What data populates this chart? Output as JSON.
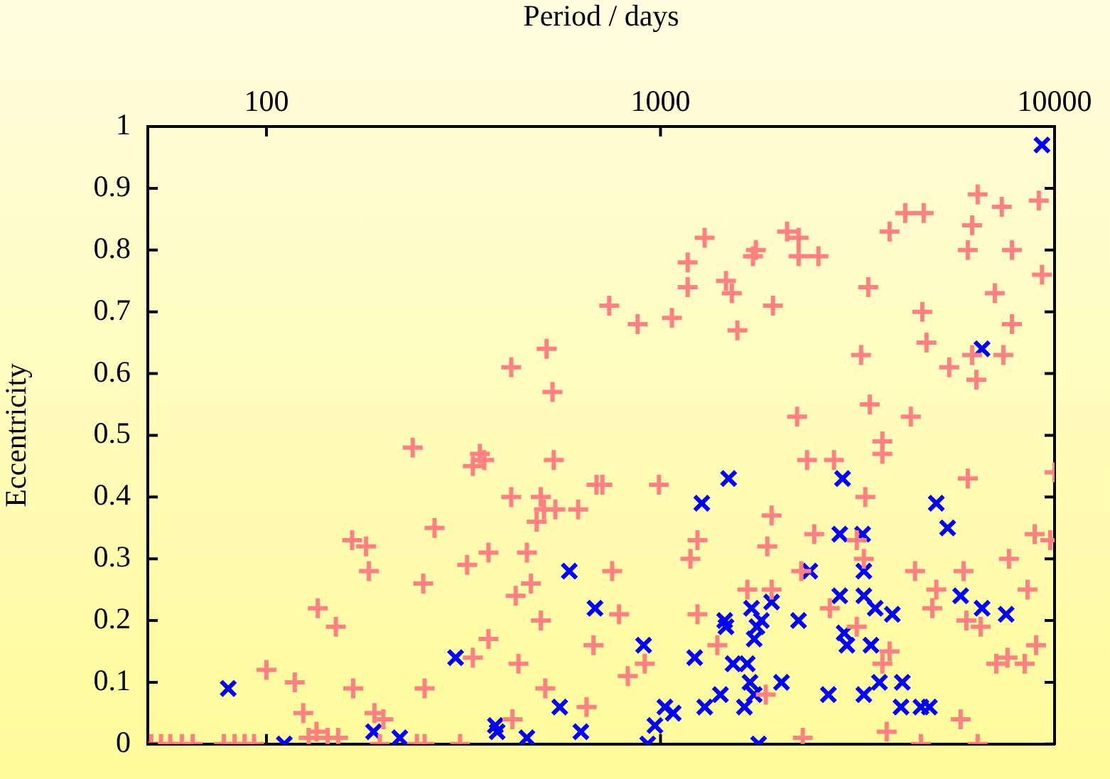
{
  "chart_data": {
    "type": "scatter",
    "xlabel": "Period / days",
    "ylabel": "Eccentricity",
    "log": "x",
    "xlim": [
      50,
      10000
    ],
    "xticks": [
      100,
      1000,
      10000
    ],
    "ylim": [
      0,
      1
    ],
    "yticks": [
      0,
      0.1,
      0.2,
      0.3,
      0.4,
      0.5,
      0.6,
      0.7,
      0.8,
      0.9,
      1
    ],
    "legend": false,
    "series": [
      {
        "color": "#ff8080",
        "marker": "cross",
        "x": [
          51,
          54,
          57,
          61,
          65,
          78,
          83,
          88,
          93,
          235,
          348,
          357,
          334,
          536,
          418,
          497,
          506,
          541,
          618,
          485,
          267,
          165,
          179,
          182,
          250,
          323,
          366,
          458,
          469,
          429,
          497,
          135,
          150,
          100,
          118,
          124,
          166,
          252,
          334,
          366,
          436,
          510,
          649,
          676,
          688,
          188,
          198,
          421,
          134,
          128,
          143,
          152,
          194,
          241,
          252,
          310,
          514,
          418,
          532,
          741,
          875,
          1069,
          1172,
          1172,
          1294,
          1466,
          1517,
          1567,
          1716,
          1746,
          1929,
          2095,
          2241,
          2241,
          2516,
          2221,
          3228,
          3367,
          3396,
          3656,
          3813,
          4178,
          4654,
          4317,
          4617,
          4731,
          5404,
          6176,
          6380,
          6022,
          6176,
          6331,
          7053,
          7346,
          7794,
          7794,
          7413,
          9120,
          9290,
          3656,
          2354,
          2755,
          712,
          991,
          1914,
          3309,
          2455,
          1241,
          1191,
          1866,
          3148,
          3281,
          2276,
          754,
          1661,
          1914,
          2690,
          3148,
          785,
          1241,
          912,
          826,
          1394,
          3813,
          3656,
          1850,
          3750,
          2296,
          4580,
          4426,
          6022,
          5875,
          5010,
          4894,
          5973,
          6490,
          7660,
          8538,
          8904,
          9750,
          10000,
          8977,
          7597,
          7112,
          8397,
          5776,
          6380
        ],
        "values": [
          0,
          0,
          0,
          0,
          0,
          0,
          0,
          0,
          0,
          0.48,
          0.47,
          0.46,
          0.45,
          0.46,
          0.4,
          0.4,
          0.38,
          0.38,
          0.38,
          0.36,
          0.35,
          0.33,
          0.32,
          0.28,
          0.26,
          0.29,
          0.31,
          0.31,
          0.26,
          0.24,
          0.2,
          0.22,
          0.19,
          0.12,
          0.1,
          0.05,
          0.09,
          0.09,
          0.14,
          0.17,
          0.13,
          0.09,
          0.06,
          0.16,
          0.42,
          0.05,
          0.04,
          0.04,
          0.02,
          0.01,
          0.01,
          0.01,
          0,
          0,
          0,
          0,
          0.64,
          0.61,
          0.57,
          0.71,
          0.68,
          0.69,
          0.78,
          0.74,
          0.82,
          0.75,
          0.73,
          0.67,
          0.79,
          0.8,
          0.71,
          0.83,
          0.82,
          0.79,
          0.79,
          0.53,
          0.63,
          0.74,
          0.55,
          0.49,
          0.83,
          0.86,
          0.86,
          0.53,
          0.7,
          0.65,
          0.61,
          0.84,
          0.89,
          0.8,
          0.63,
          0.59,
          0.73,
          0.87,
          0.8,
          0.68,
          0.63,
          0.88,
          0.76,
          0.47,
          0.46,
          0.46,
          0.42,
          0.42,
          0.37,
          0.4,
          0.34,
          0.33,
          0.3,
          0.32,
          0.33,
          0.3,
          0.28,
          0.28,
          0.25,
          0.25,
          0.22,
          0.19,
          0.21,
          0.21,
          0.13,
          0.11,
          0.16,
          0.15,
          0.13,
          0.08,
          0.02,
          0.01,
          0,
          0.28,
          0.43,
          0.28,
          0.25,
          0.22,
          0.2,
          0.19,
          0.3,
          0.25,
          0.34,
          0.33,
          0.44,
          0.16,
          0.14,
          0.13,
          0.13,
          0.04,
          0
        ]
      },
      {
        "color": "#0000ff",
        "marker": "x",
        "x": [
          80,
          111,
          187,
          218,
          302,
          381,
          385,
          458,
          555,
          587,
          628,
          682,
          1489,
          1273,
          906,
          928,
          968,
          1026,
          1077,
          1221,
          1295,
          1419,
          1455,
          1466,
          1528,
          1633,
          1660,
          1687,
          1702,
          1729,
          1757,
          1729,
          1774,
          1803,
          1914,
          2028,
          2240,
          2393,
          2667,
          2850,
          2897,
          2850,
          2924,
          2972,
          3258,
          3281,
          3281,
          3281,
          3420,
          3506,
          3594,
          3875,
          4108,
          4077,
          4580,
          4813,
          5010,
          5353,
          5776,
          6546,
          7536,
          6546,
          9290
        ],
        "values": [
          0.09,
          0,
          0.02,
          0.01,
          0.14,
          0.03,
          0.02,
          0.01,
          0.06,
          0.28,
          0.02,
          0.22,
          0.43,
          0.39,
          0.16,
          0,
          0.03,
          0.06,
          0.05,
          0.14,
          0.06,
          0.08,
          0.2,
          0.19,
          0.13,
          0.06,
          0.13,
          0.1,
          0.22,
          0.17,
          0.19,
          0.08,
          0,
          0.2,
          0.23,
          0.1,
          0.2,
          0.28,
          0.08,
          0.24,
          0.43,
          0.34,
          0.18,
          0.16,
          0.34,
          0.28,
          0.24,
          0.08,
          0.16,
          0.22,
          0.1,
          0.21,
          0.1,
          0.06,
          0.06,
          0.06,
          0.39,
          0.35,
          0.24,
          0.22,
          0.21,
          0.64,
          0.97
        ]
      }
    ]
  }
}
